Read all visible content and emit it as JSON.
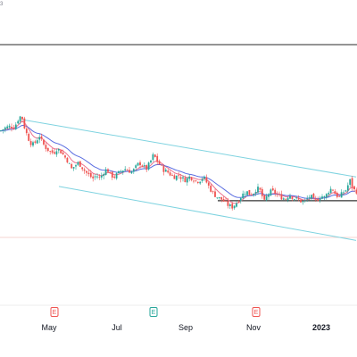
{
  "header": {
    "corner_text": "3"
  },
  "colors": {
    "up": "#26a69a",
    "down": "#ef5350",
    "ema_fast": "#ec6f8e",
    "ema_slow": "#5b6ee1",
    "channel": "#7fd3e0",
    "horizontal_line": "#555555",
    "earnings_red": "#ef5350",
    "earnings_green": "#26a69a",
    "grid": "#eeeeee"
  },
  "axis": {
    "months": [
      {
        "label": "May",
        "bold": false
      },
      {
        "label": "Jul",
        "bold": false
      },
      {
        "label": "Sep",
        "bold": false
      },
      {
        "label": "Nov",
        "bold": false
      },
      {
        "label": "2023",
        "bold": true
      }
    ]
  },
  "earnings": [
    {
      "letter": "E",
      "color": "red"
    },
    {
      "letter": "E",
      "color": "green"
    },
    {
      "letter": "E",
      "color": "red"
    }
  ],
  "chart_data": {
    "type": "candlestick",
    "title": "",
    "xlabel": "",
    "ylabel": "",
    "grid": false,
    "x_axis_labels": [
      "May",
      "Jul",
      "Sep",
      "Nov",
      "2023"
    ],
    "price_path_points": [
      [
        0,
        55
      ],
      [
        6,
        57
      ],
      [
        12,
        58
      ],
      [
        16,
        57
      ],
      [
        20,
        62
      ],
      [
        24,
        65
      ],
      [
        28,
        56
      ],
      [
        32,
        50
      ],
      [
        36,
        46
      ],
      [
        40,
        48
      ],
      [
        44,
        52
      ],
      [
        48,
        47
      ],
      [
        52,
        44
      ],
      [
        56,
        42
      ],
      [
        60,
        41
      ],
      [
        64,
        44
      ],
      [
        68,
        42
      ],
      [
        72,
        39
      ],
      [
        76,
        36
      ],
      [
        80,
        31
      ],
      [
        84,
        33
      ],
      [
        88,
        35
      ],
      [
        92,
        32
      ],
      [
        96,
        29
      ],
      [
        100,
        27
      ],
      [
        104,
        25
      ],
      [
        108,
        27
      ],
      [
        112,
        25
      ],
      [
        116,
        29
      ],
      [
        120,
        31
      ],
      [
        124,
        27
      ],
      [
        128,
        26
      ],
      [
        132,
        28
      ],
      [
        136,
        30
      ],
      [
        140,
        31
      ],
      [
        144,
        30
      ],
      [
        148,
        29
      ],
      [
        152,
        32
      ],
      [
        156,
        35
      ],
      [
        160,
        33
      ],
      [
        164,
        31
      ],
      [
        168,
        35
      ],
      [
        172,
        40
      ],
      [
        176,
        36
      ],
      [
        180,
        33
      ],
      [
        184,
        30
      ],
      [
        188,
        29
      ],
      [
        192,
        27
      ],
      [
        196,
        26
      ],
      [
        200,
        27
      ],
      [
        204,
        25
      ],
      [
        208,
        24
      ],
      [
        212,
        26
      ],
      [
        216,
        25
      ],
      [
        220,
        23
      ],
      [
        224,
        24
      ],
      [
        228,
        26
      ],
      [
        232,
        22
      ],
      [
        236,
        18
      ],
      [
        240,
        15
      ],
      [
        244,
        13
      ],
      [
        248,
        12
      ],
      [
        252,
        10
      ],
      [
        256,
        8
      ],
      [
        260,
        7
      ],
      [
        264,
        9
      ],
      [
        268,
        12
      ],
      [
        272,
        15
      ],
      [
        276,
        17
      ],
      [
        280,
        15
      ],
      [
        284,
        16
      ],
      [
        288,
        19
      ],
      [
        292,
        17
      ],
      [
        296,
        10
      ],
      [
        300,
        15
      ],
      [
        304,
        17
      ],
      [
        308,
        16
      ],
      [
        312,
        14
      ],
      [
        316,
        13
      ],
      [
        320,
        12
      ],
      [
        324,
        15
      ],
      [
        328,
        13
      ],
      [
        332,
        12
      ],
      [
        336,
        11
      ],
      [
        340,
        10
      ],
      [
        344,
        12
      ],
      [
        348,
        14
      ],
      [
        352,
        11
      ],
      [
        356,
        12
      ],
      [
        360,
        14
      ],
      [
        364,
        13
      ],
      [
        368,
        17
      ],
      [
        372,
        19
      ],
      [
        376,
        15
      ],
      [
        380,
        13
      ],
      [
        384,
        16
      ],
      [
        388,
        18
      ],
      [
        392,
        24
      ],
      [
        396,
        18
      ],
      [
        399,
        17
      ]
    ],
    "channel_upper": [
      [
        26,
        62
      ],
      [
        399,
        26
      ]
    ],
    "channel_lower": [
      [
        66,
        20
      ],
      [
        399,
        -14
      ]
    ],
    "support_level": 11
  }
}
